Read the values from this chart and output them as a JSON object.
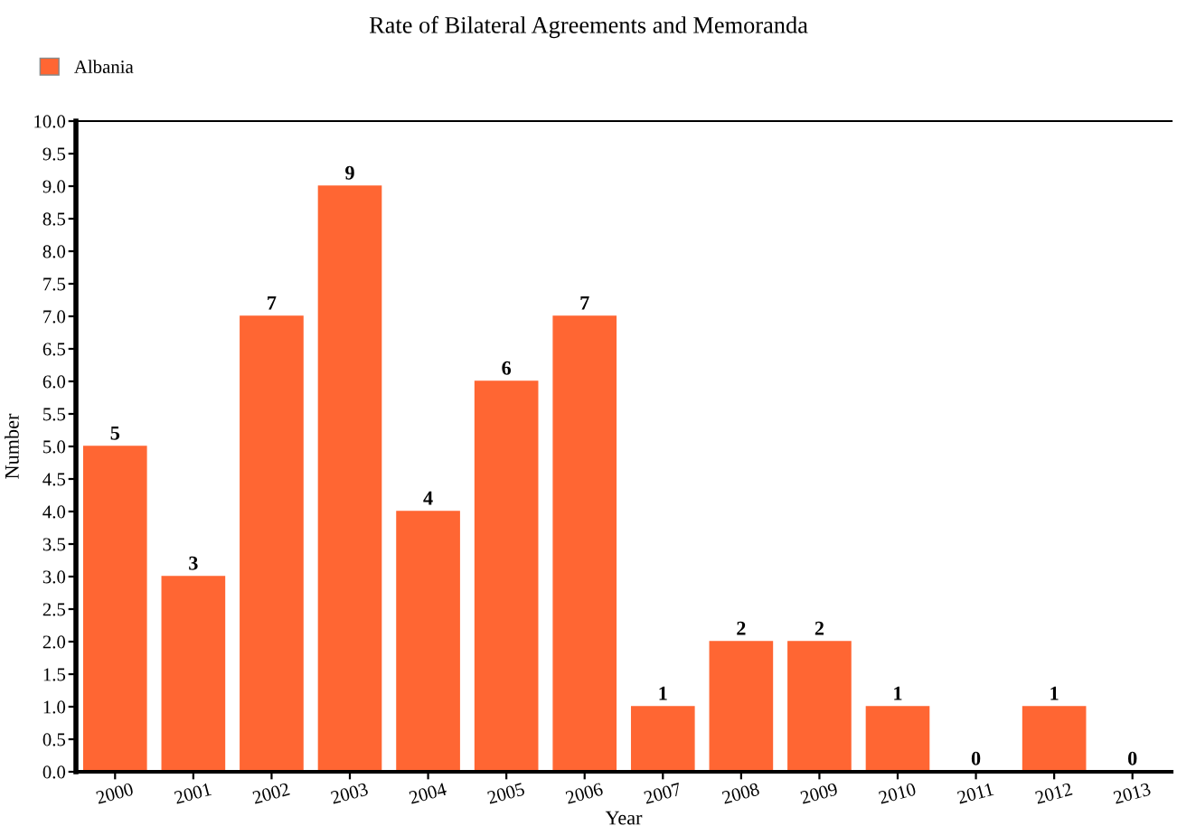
{
  "chart_data": {
    "type": "bar",
    "title": "Rate of Bilateral Agreements and Memoranda",
    "xlabel": "Year",
    "ylabel": "Number",
    "categories": [
      "2000",
      "2001",
      "2002",
      "2003",
      "2004",
      "2005",
      "2006",
      "2007",
      "2008",
      "2009",
      "2010",
      "2011",
      "2012",
      "2013"
    ],
    "series": [
      {
        "name": "Albania",
        "color": "#ff6633",
        "values": [
          5,
          3,
          7,
          9,
          4,
          6,
          7,
          1,
          2,
          2,
          1,
          0,
          1,
          0
        ]
      }
    ],
    "ylim": [
      0,
      10
    ],
    "yticks": [
      {
        "value": 0,
        "label": "0.0"
      },
      {
        "value": 0.5,
        "label": "0.5"
      },
      {
        "value": 1,
        "label": "1.0"
      },
      {
        "value": 1.5,
        "label": "1.5"
      },
      {
        "value": 2,
        "label": "2.0"
      },
      {
        "value": 2.5,
        "label": "2.5"
      },
      {
        "value": 3,
        "label": "3.0"
      },
      {
        "value": 3.5,
        "label": "3.5"
      },
      {
        "value": 4,
        "label": "4.0"
      },
      {
        "value": 4.5,
        "label": "4.5"
      },
      {
        "value": 5,
        "label": "5.0"
      },
      {
        "value": 5.5,
        "label": "5.5"
      },
      {
        "value": 6,
        "label": "6.0"
      },
      {
        "value": 6.5,
        "label": "6.5"
      },
      {
        "value": 7,
        "label": "7.0"
      },
      {
        "value": 7.5,
        "label": "7.5"
      },
      {
        "value": 8,
        "label": "8.0"
      },
      {
        "value": 8.5,
        "label": "8.5"
      },
      {
        "value": 9,
        "label": "9.0"
      },
      {
        "value": 9.5,
        "label": "9.5"
      },
      {
        "value": 10,
        "label": "10.0"
      }
    ],
    "data_labels": true,
    "legend": "top left",
    "grid": false
  }
}
